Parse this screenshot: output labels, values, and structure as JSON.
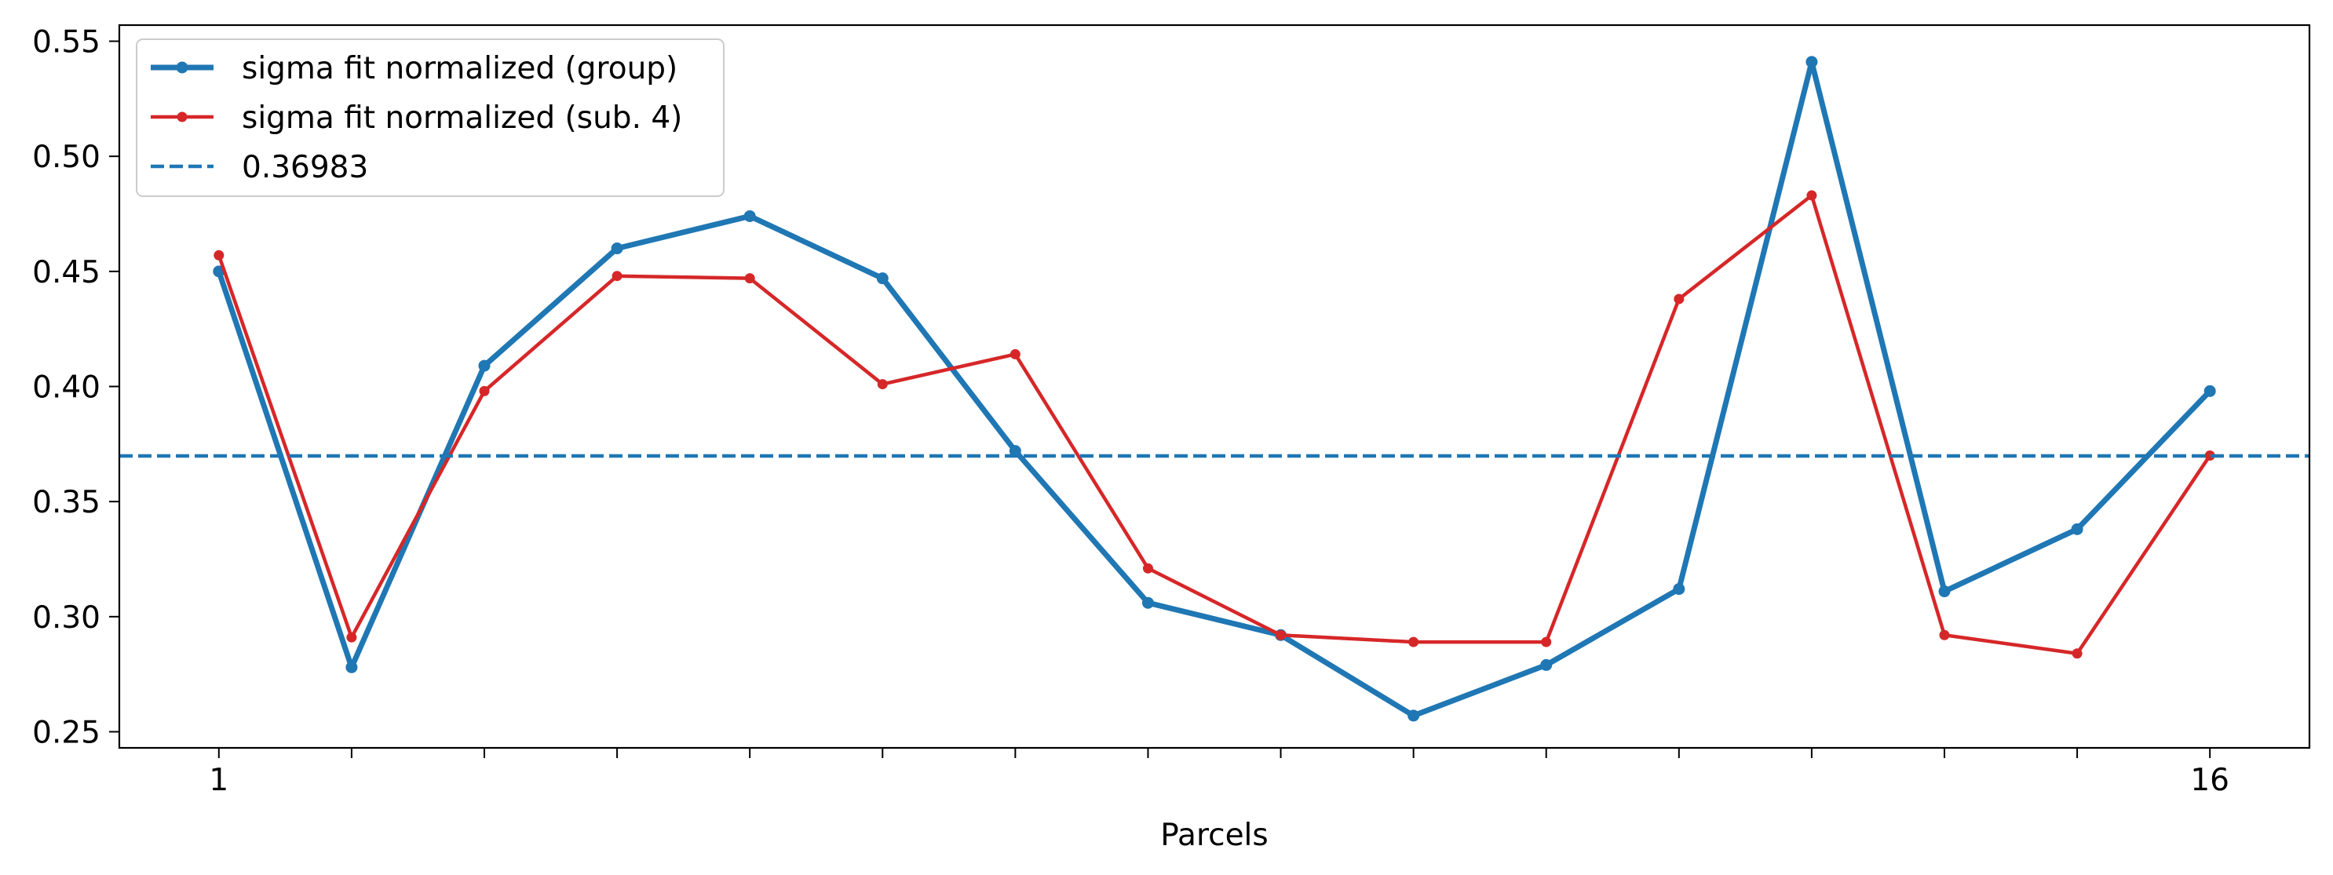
{
  "chart_data": {
    "type": "line",
    "x": [
      1,
      2,
      3,
      4,
      5,
      6,
      7,
      8,
      9,
      10,
      11,
      12,
      13,
      14,
      15,
      16
    ],
    "x_tick_labels": [
      "1",
      "",
      "",
      "",
      "",
      "",
      "",
      "",
      "",
      "",
      "",
      "",
      "",
      "",
      "",
      "16"
    ],
    "xlabel": "Parcels",
    "ylabel": "",
    "xlim": [
      0.25,
      16.75
    ],
    "ylim": [
      0.243,
      0.557
    ],
    "y_ticks": [
      0.25,
      0.3,
      0.35,
      0.4,
      0.45,
      0.5,
      0.55
    ],
    "y_tick_labels": [
      "0.25",
      "0.30",
      "0.35",
      "0.40",
      "0.45",
      "0.50",
      "0.55"
    ],
    "grid": false,
    "legend_position": "top-left",
    "series": [
      {
        "name": "sigma fit normalized (group)",
        "color": "#1f77b4",
        "style": "solid-thick-markers",
        "values": [
          0.45,
          0.278,
          0.409,
          0.46,
          0.474,
          0.447,
          0.372,
          0.306,
          0.292,
          0.257,
          0.279,
          0.312,
          0.541,
          0.311,
          0.338,
          0.398
        ]
      },
      {
        "name": "sigma fit normalized (sub. 4)",
        "color": "#d62728",
        "style": "solid-markers",
        "values": [
          0.457,
          0.291,
          0.398,
          0.448,
          0.447,
          0.401,
          0.414,
          0.321,
          0.292,
          0.289,
          0.289,
          0.438,
          0.483,
          0.292,
          0.284,
          0.37
        ]
      },
      {
        "name": "0.36983",
        "color": "#1f77b4",
        "style": "dashed-hline",
        "y": 0.36983
      }
    ]
  }
}
